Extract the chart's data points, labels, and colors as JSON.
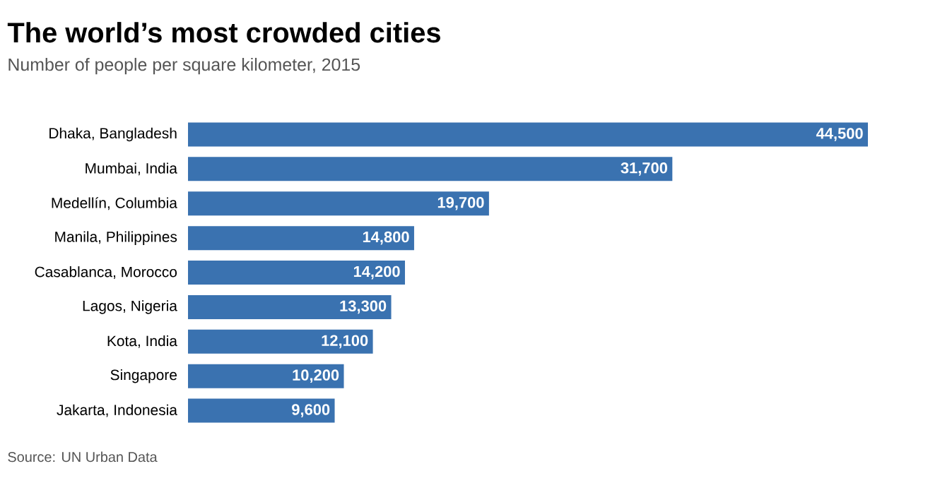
{
  "chart_data": {
    "type": "bar",
    "orientation": "horizontal",
    "title": "The world’s most crowded cities",
    "subtitle": "Number of people per square kilometer, 2015",
    "categories": [
      "Dhaka, Bangladesh",
      "Mumbai, India",
      "Medellín, Columbia",
      "Manila, Philippines",
      "Casablanca, Morocco",
      "Lagos, Nigeria",
      "Kota, India",
      "Singapore",
      "Jakarta, Indonesia"
    ],
    "values": [
      44500,
      31700,
      19700,
      14800,
      14200,
      13300,
      12100,
      10200,
      9600
    ],
    "value_labels": [
      "44,500",
      "31,700",
      "19,700",
      "14,800",
      "14,200",
      "13,300",
      "12,100",
      "10,200",
      "9,600"
    ],
    "color": "#3a72b0",
    "annotations": [
      "Source: UN Urban Data"
    ]
  }
}
